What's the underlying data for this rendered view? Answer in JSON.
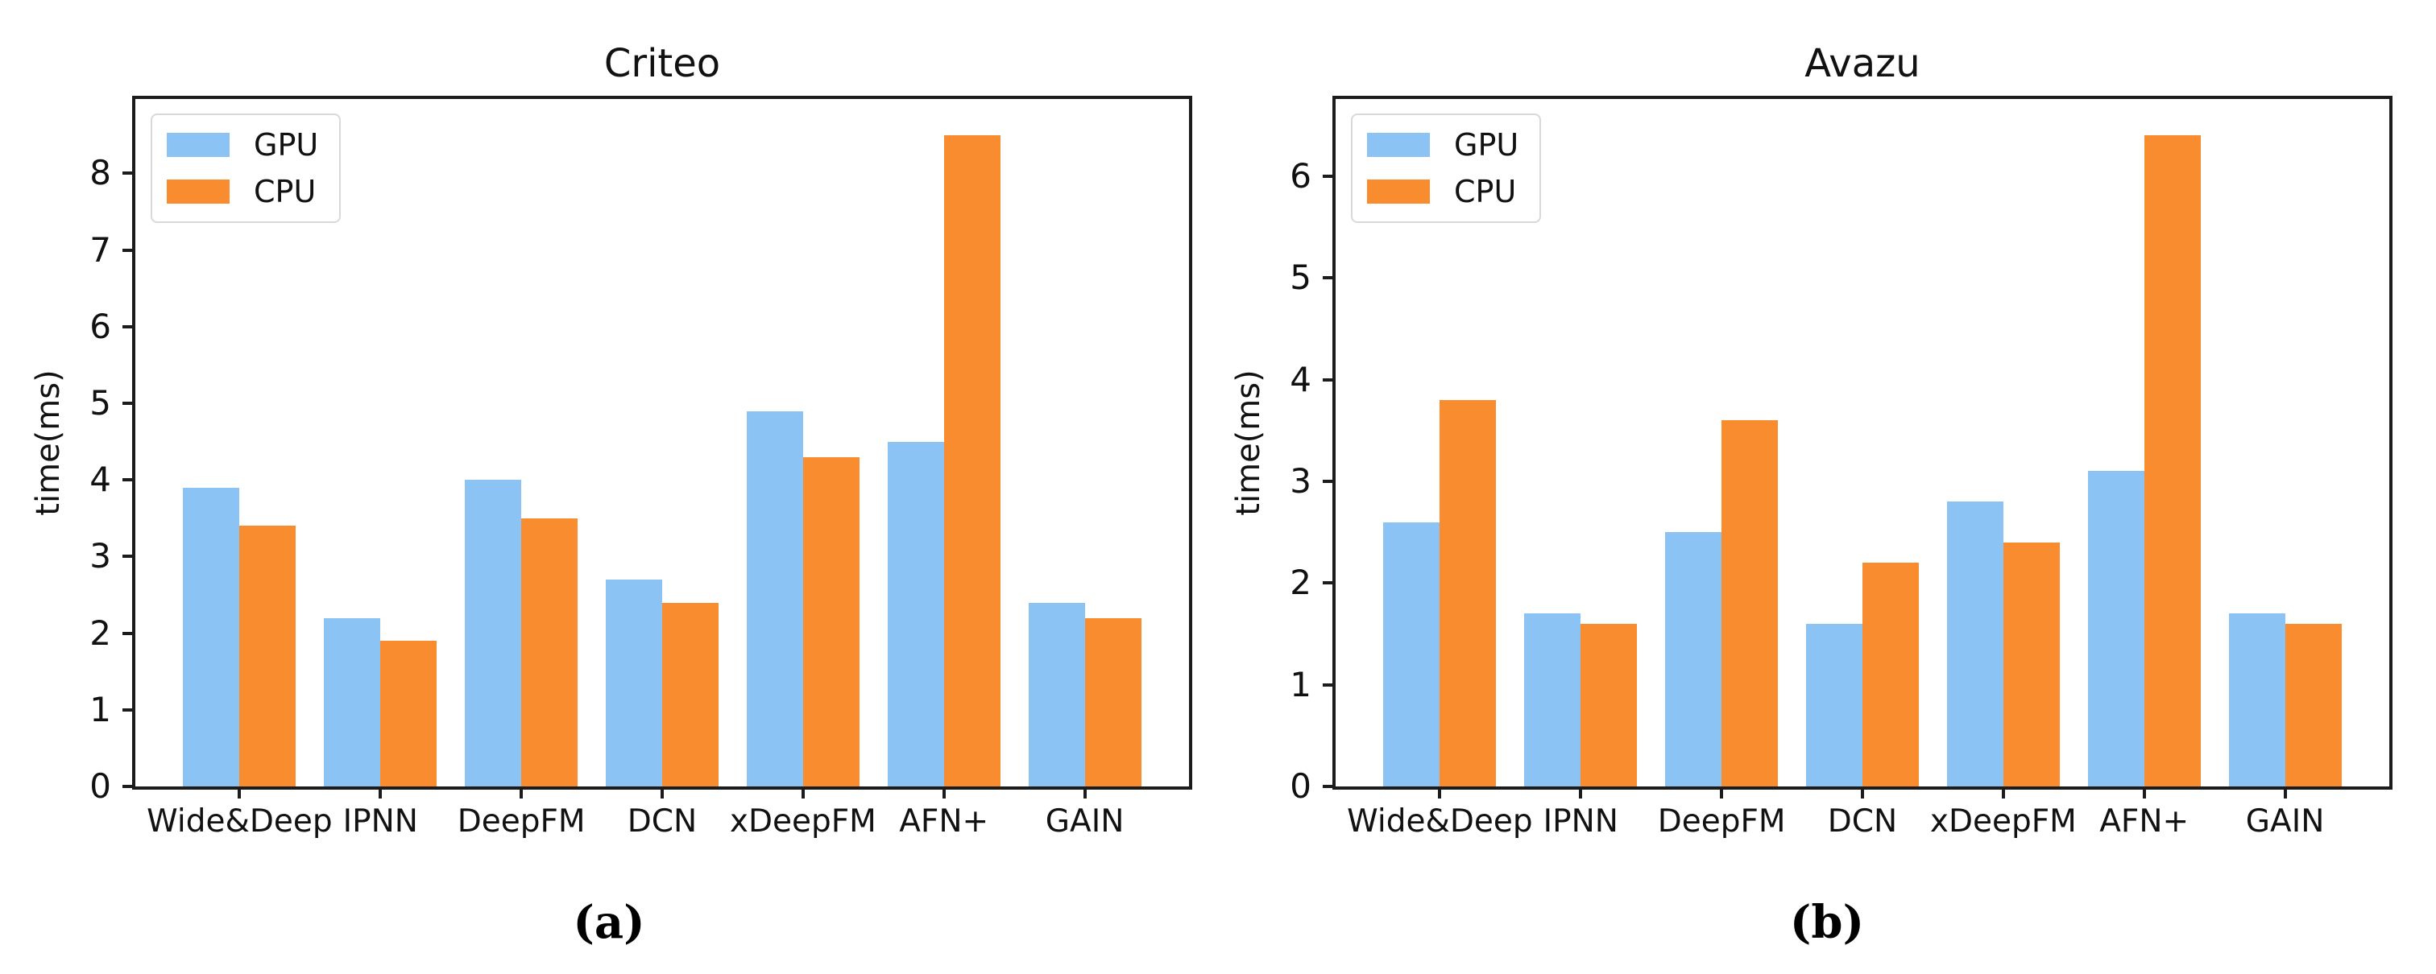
{
  "colors": {
    "gpu": "#8cc3f5",
    "cpu": "#f88c2e",
    "spine": "#1c1c1c",
    "text": "#111111",
    "legend_border": "#d9d9d9"
  },
  "figure": {
    "captions": [
      {
        "label": "(a)"
      },
      {
        "label": "(b)"
      }
    ]
  },
  "chart_data": [
    {
      "type": "bar",
      "title": "Criteo",
      "xlabel": "",
      "ylabel": "time(ms)",
      "categories": [
        "Wide&Deep",
        "IPNN",
        "DeepFM",
        "DCN",
        "xDeepFM",
        "AFN+",
        "GAIN"
      ],
      "series": [
        {
          "name": "GPU",
          "color_key": "gpu",
          "values": [
            3.9,
            2.2,
            4.0,
            2.7,
            4.9,
            4.5,
            2.4
          ]
        },
        {
          "name": "CPU",
          "color_key": "cpu",
          "values": [
            3.4,
            1.9,
            3.5,
            2.4,
            4.3,
            8.5,
            2.2
          ]
        }
      ],
      "ylim": [
        0,
        8.97
      ],
      "yticks": [
        0,
        1,
        2,
        3,
        4,
        5,
        6,
        7,
        8
      ],
      "grid": false,
      "legend_position": "upper left"
    },
    {
      "type": "bar",
      "title": "Avazu",
      "xlabel": "",
      "ylabel": "time(ms)",
      "categories": [
        "Wide&Deep",
        "IPNN",
        "DeepFM",
        "DCN",
        "xDeepFM",
        "AFN+",
        "GAIN"
      ],
      "series": [
        {
          "name": "GPU",
          "color_key": "gpu",
          "values": [
            2.6,
            1.7,
            2.5,
            1.6,
            2.8,
            3.1,
            1.7
          ]
        },
        {
          "name": "CPU",
          "color_key": "cpu",
          "values": [
            3.8,
            1.6,
            3.6,
            2.2,
            2.4,
            6.4,
            1.6
          ]
        }
      ],
      "ylim": [
        0,
        6.76
      ],
      "yticks": [
        0,
        1,
        2,
        3,
        4,
        5,
        6
      ],
      "grid": false,
      "legend_position": "upper left"
    }
  ]
}
